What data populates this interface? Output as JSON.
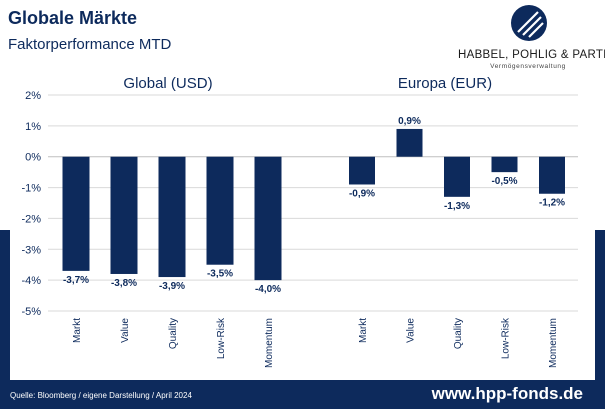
{
  "header": {
    "title": "Globale Märkte",
    "subtitle": "Faktorperformance MTD"
  },
  "logo": {
    "name": "HABBEL, POHLIG & PARTNER",
    "tagline": "Vermögensverwaltung"
  },
  "footer": {
    "source": "Quelle: Bloomberg / eigene Darstellung / April 2024",
    "url": "www.hpp-fonds.de"
  },
  "colors": {
    "bar": "#0d2a5c",
    "grid": "#d9d9d9",
    "text": "#0d2a5c"
  },
  "chart_data": [
    {
      "type": "bar",
      "title": "Global (USD)",
      "categories": [
        "Markt",
        "Value",
        "Quality",
        "Low-Risk",
        "Momentum"
      ],
      "values": [
        -3.7,
        -3.8,
        -3.9,
        -3.5,
        -4.0
      ],
      "labels": [
        "-3,7%",
        "-3,8%",
        "-3,9%",
        "-3,5%",
        "-4,0%"
      ],
      "ylim": [
        -5,
        2
      ],
      "yticks": [
        "2%",
        "1%",
        "0%",
        "-1%",
        "-2%",
        "-3%",
        "-4%",
        "-5%"
      ],
      "grid": true
    },
    {
      "type": "bar",
      "title": "Europa (EUR)",
      "categories": [
        "Markt",
        "Value",
        "Quality",
        "Low-Risk",
        "Momentum"
      ],
      "values": [
        -0.9,
        0.9,
        -1.3,
        -0.5,
        -1.2
      ],
      "labels": [
        "-0,9%",
        "0,9%",
        "-1,3%",
        "-0,5%",
        "-1,2%"
      ],
      "ylim": [
        -5,
        2
      ],
      "grid": true
    }
  ]
}
